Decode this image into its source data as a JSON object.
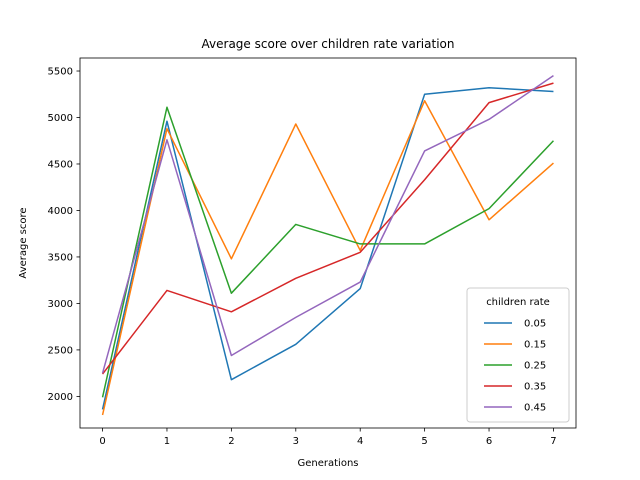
{
  "chart_data": {
    "type": "line",
    "title": "Average score over children rate variation",
    "xlabel": "Generations",
    "ylabel": "Average score",
    "x": [
      0,
      1,
      2,
      3,
      4,
      5,
      6,
      7
    ],
    "xlim": [
      -0.35,
      7.35
    ],
    "ylim": [
      1660,
      5640
    ],
    "xticks": [
      "0",
      "1",
      "2",
      "3",
      "4",
      "5",
      "6",
      "7"
    ],
    "yticks": [
      "2000",
      "2500",
      "3000",
      "3500",
      "4000",
      "4500",
      "5000",
      "5500"
    ],
    "grid": false,
    "legend": {
      "title": "children rate",
      "position": "bottom-right"
    },
    "series": [
      {
        "name": "0.05",
        "color": "#1f77b4",
        "values": [
          1860,
          4960,
          2180,
          2560,
          3160,
          5250,
          5320,
          5280
        ]
      },
      {
        "name": "0.15",
        "color": "#ff7f0e",
        "values": [
          1800,
          4880,
          3480,
          4930,
          3570,
          5180,
          3900,
          4510
        ]
      },
      {
        "name": "0.25",
        "color": "#2ca02c",
        "values": [
          1990,
          5110,
          3110,
          3850,
          3640,
          3640,
          4020,
          4750
        ]
      },
      {
        "name": "0.35",
        "color": "#d62728",
        "values": [
          2240,
          3140,
          2910,
          3270,
          3550,
          4330,
          5160,
          5370
        ]
      },
      {
        "name": "0.45",
        "color": "#9467bd",
        "values": [
          2250,
          4760,
          2440,
          2850,
          3230,
          4640,
          4980,
          5450
        ]
      }
    ]
  }
}
